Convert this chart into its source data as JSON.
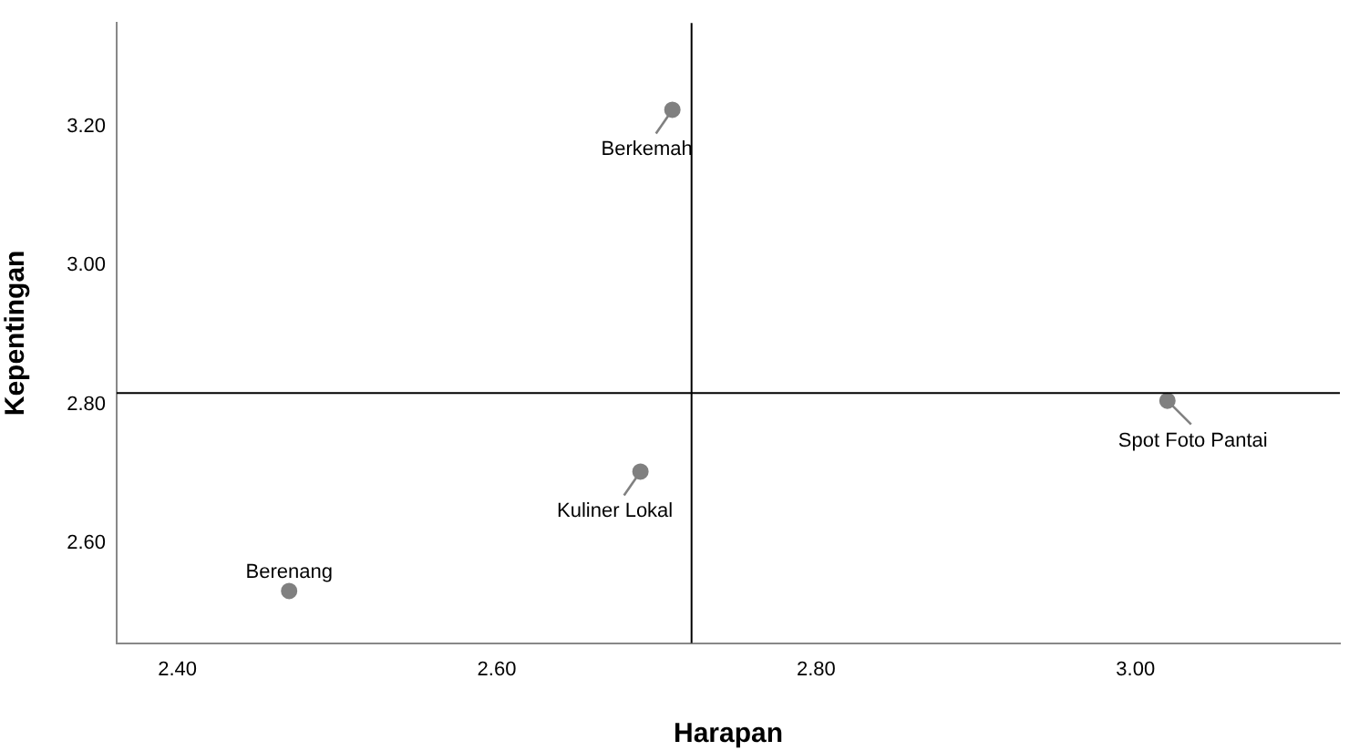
{
  "chart_data": {
    "type": "scatter",
    "xlabel": "Harapan",
    "ylabel": "Kepentingan",
    "x": [
      2.71,
      2.69,
      2.47,
      3.02
    ],
    "values": [
      3.224,
      2.703,
      2.531,
      2.805
    ],
    "color": "#808080",
    "marker": "circle",
    "grid": false,
    "legend": false,
    "xlim": [
      2.362,
      3.128
    ],
    "ylim": [
      2.456,
      3.349
    ],
    "xticks": [
      {
        "value": 2.4,
        "label": "2.40"
      },
      {
        "value": 2.6,
        "label": "2.60"
      },
      {
        "value": 2.8,
        "label": "2.80"
      },
      {
        "value": 3.0,
        "label": "3.00"
      }
    ],
    "yticks": [
      {
        "value": 2.6,
        "label": "2.60"
      },
      {
        "value": 2.8,
        "label": "2.80"
      },
      {
        "value": 3.0,
        "label": "3.00"
      },
      {
        "value": 3.2,
        "label": "3.20"
      }
    ],
    "ref_lines": [
      {
        "axis": "x",
        "value": 2.722,
        "color": "#000000"
      },
      {
        "axis": "y",
        "value": 2.816,
        "color": "#000000"
      }
    ],
    "annotations": [
      {
        "text": "Berkemah",
        "x": 2.71,
        "y": 3.224
      },
      {
        "text": "Kuliner Lokal",
        "x": 2.69,
        "y": 2.703
      },
      {
        "text": "Berenang",
        "x": 2.47,
        "y": 2.531
      },
      {
        "text": "Spot Foto Pantai",
        "x": 3.02,
        "y": 2.805
      }
    ]
  }
}
